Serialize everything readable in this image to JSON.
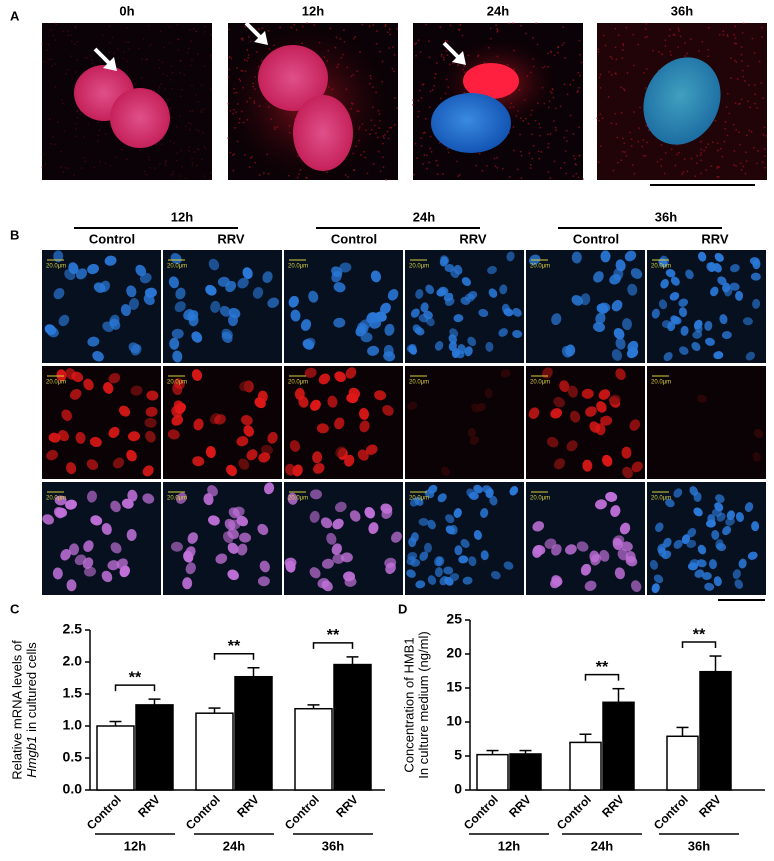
{
  "panel_a": {
    "label": "A",
    "timepoints": [
      "0h",
      "12h",
      "24h",
      "36h"
    ]
  },
  "panel_b": {
    "label": "B",
    "groups": [
      "12h",
      "24h",
      "36h"
    ],
    "conditions": [
      "Control",
      "RRV"
    ],
    "scale_label": "20.0μm"
  },
  "chart_data": [
    {
      "type": "bar",
      "label": "C",
      "ylabel": {
        "line1": "Relative mRNA levels of",
        "gene": "Hmgb1",
        "line2": "in cultured cells"
      },
      "groups": [
        "12h",
        "24h",
        "36h"
      ],
      "series": [
        {
          "name": "Control",
          "color": "#ffffff",
          "values": [
            1.0,
            1.2,
            1.27
          ],
          "errors": [
            0.07,
            0.08,
            0.06
          ]
        },
        {
          "name": "RRV",
          "color": "#000000",
          "values": [
            1.33,
            1.77,
            1.96
          ],
          "errors": [
            0.09,
            0.14,
            0.12
          ]
        }
      ],
      "significance": [
        "**",
        "**",
        "**"
      ],
      "ylim": [
        0,
        2.5
      ],
      "yticks": [
        {
          "value": 0,
          "label": "0.0"
        },
        {
          "value": 0.5,
          "label": "0.5"
        },
        {
          "value": 1,
          "label": "1.0"
        },
        {
          "value": 1.5,
          "label": "1.5"
        },
        {
          "value": 2,
          "label": "2.0"
        },
        {
          "value": 2.5,
          "label": "2.5"
        }
      ]
    },
    {
      "type": "bar",
      "label": "D",
      "ylabel": {
        "line1": "Concentration of HMB1",
        "line2": "In culture medium (ng/ml)"
      },
      "groups": [
        "12h",
        "24h",
        "36h"
      ],
      "series": [
        {
          "name": "Control",
          "color": "#ffffff",
          "values": [
            5.2,
            7.0,
            7.9
          ],
          "errors": [
            0.6,
            1.2,
            1.3
          ]
        },
        {
          "name": "RRV",
          "color": "#000000",
          "values": [
            5.3,
            12.9,
            17.4
          ],
          "errors": [
            0.5,
            2.0,
            2.3
          ]
        }
      ],
      "significance": [
        null,
        "**",
        "**"
      ],
      "ylim": [
        0,
        25
      ],
      "yticks": [
        0,
        5,
        10,
        15,
        20,
        25
      ]
    }
  ]
}
